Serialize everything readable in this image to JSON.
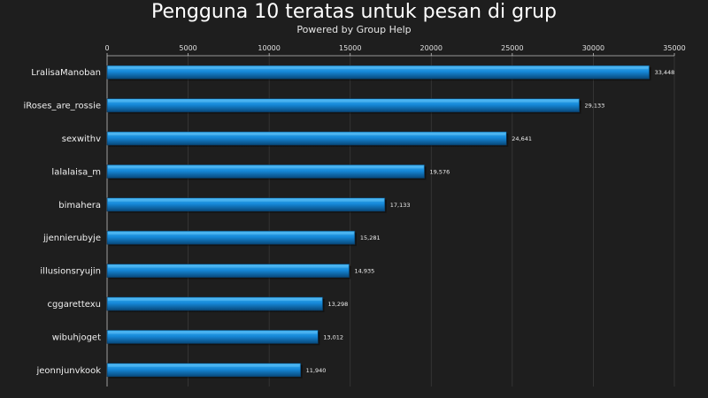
{
  "chart_data": {
    "type": "bar",
    "orientation": "horizontal",
    "title": "Pengguna 10 teratas untuk pesan di grup",
    "subtitle": "Powered by Group Help",
    "xlabel": "",
    "ylabel": "",
    "xlim": [
      0,
      35000
    ],
    "x_ticks": [
      0,
      5000,
      10000,
      15000,
      20000,
      25000,
      30000,
      35000
    ],
    "x_tick_labels": [
      "0",
      "5000",
      "10000",
      "15000",
      "20000",
      "25000",
      "30000",
      "35000"
    ],
    "categories": [
      "LralisaManoban",
      "iRoses_are_rossie",
      "sexwithv",
      "lalalaisa_m",
      "bimahera",
      "jjennierubyje",
      "illusionsryujin",
      "cggarettexu",
      "wibuhjoget",
      "jeonnjunvkook"
    ],
    "values": [
      33448,
      29133,
      24641,
      19576,
      17133,
      15281,
      14935,
      13298,
      13012,
      11940
    ],
    "value_labels": [
      "33,448",
      "29,133",
      "24,641",
      "19,576",
      "17,133",
      "15,281",
      "14,935",
      "13,298",
      "13,012",
      "11,940"
    ],
    "grid": true,
    "legend": "none",
    "colors": {
      "background": "#1e1e1e",
      "bar_light": "#3ab0f0",
      "bar_mid": "#0f7cc8",
      "bar_dark": "#08487a",
      "grid": "#3a3a3a",
      "axis": "#bfbfbf",
      "text": "#f0f0f0"
    }
  }
}
